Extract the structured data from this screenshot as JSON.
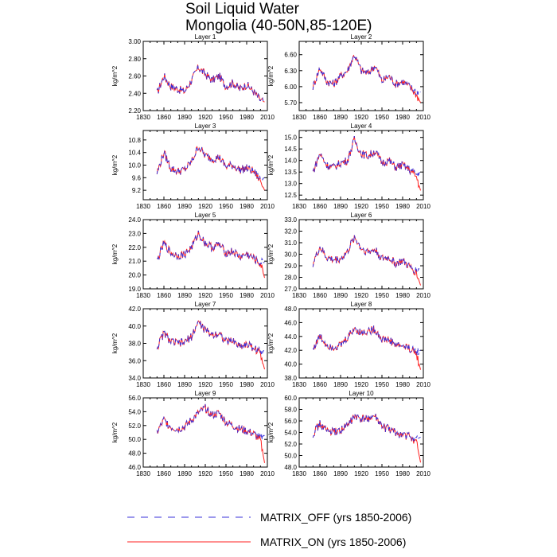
{
  "figure": {
    "title_line1": "Soil Liquid Water",
    "title_line2": "Mongolia (40-50N,85-120E)"
  },
  "legend": [
    {
      "label": "MATRIX_OFF (yrs 1850-2006)",
      "color": "#3a30d8",
      "style": "dashed"
    },
    {
      "label": "MATRIX_ON (yrs 1850-2006)",
      "color": "#ff2020",
      "style": "solid"
    }
  ],
  "chart_data": [
    {
      "type": "line",
      "title": "Layer 1",
      "xlabel": "",
      "ylabel": "kg/m^2",
      "xlim": [
        1830,
        2010
      ],
      "ylim": [
        2.2,
        3.0
      ],
      "xticks": [
        "1830",
        "1860",
        "1890",
        "1920",
        "1950",
        "1980",
        "2010"
      ],
      "yticks": [
        "2.20",
        "2.40",
        "2.60",
        "2.80",
        "3.00"
      ],
      "x": [
        1850,
        1860,
        1870,
        1880,
        1890,
        1900,
        1910,
        1920,
        1930,
        1940,
        1950,
        1960,
        1970,
        1980,
        1990,
        2000,
        2006
      ],
      "series": [
        {
          "name": "MATRIX_OFF",
          "values": [
            2.4,
            2.6,
            2.48,
            2.45,
            2.42,
            2.55,
            2.7,
            2.62,
            2.55,
            2.6,
            2.48,
            2.52,
            2.45,
            2.5,
            2.42,
            2.32,
            2.3
          ]
        },
        {
          "name": "MATRIX_ON",
          "values": [
            2.4,
            2.6,
            2.48,
            2.45,
            2.42,
            2.55,
            2.7,
            2.62,
            2.55,
            2.6,
            2.48,
            2.52,
            2.45,
            2.5,
            2.42,
            2.32,
            2.3
          ]
        }
      ]
    },
    {
      "type": "line",
      "title": "Layer 2",
      "xlabel": "",
      "ylabel": "kg/m^2",
      "xlim": [
        1830,
        2010
      ],
      "ylim": [
        5.55,
        6.85
      ],
      "xticks": [
        "1830",
        "1860",
        "1890",
        "1920",
        "1950",
        "1980",
        "2010"
      ],
      "yticks": [
        "5.70",
        "6.00",
        "6.30",
        "6.60"
      ],
      "x": [
        1850,
        1860,
        1870,
        1880,
        1890,
        1900,
        1910,
        1920,
        1930,
        1940,
        1950,
        1960,
        1970,
        1980,
        1990,
        2000,
        2006
      ],
      "series": [
        {
          "name": "MATRIX_OFF",
          "values": [
            6.0,
            6.35,
            6.1,
            6.05,
            6.2,
            6.3,
            6.6,
            6.3,
            6.25,
            6.4,
            6.1,
            6.2,
            6.05,
            6.1,
            6.0,
            5.9,
            5.9
          ]
        },
        {
          "name": "MATRIX_ON",
          "values": [
            6.0,
            6.35,
            6.1,
            6.05,
            6.2,
            6.3,
            6.6,
            6.3,
            6.25,
            6.4,
            6.1,
            6.2,
            6.05,
            6.1,
            6.0,
            5.85,
            5.7
          ]
        }
      ]
    },
    {
      "type": "line",
      "title": "Layer 3",
      "xlabel": "",
      "ylabel": "kg/m^2",
      "xlim": [
        1830,
        2010
      ],
      "ylim": [
        8.9,
        11.1
      ],
      "xticks": [
        "1830",
        "1860",
        "1890",
        "1920",
        "1950",
        "1980",
        "2010"
      ],
      "yticks": [
        "9.2",
        "9.6",
        "10.0",
        "10.4",
        "10.8"
      ],
      "x": [
        1850,
        1860,
        1870,
        1880,
        1890,
        1900,
        1910,
        1920,
        1930,
        1940,
        1950,
        1960,
        1970,
        1980,
        1990,
        2000,
        2006
      ],
      "series": [
        {
          "name": "MATRIX_OFF",
          "values": [
            9.75,
            10.4,
            9.9,
            9.8,
            9.85,
            10.1,
            10.6,
            10.3,
            10.2,
            10.25,
            9.95,
            10.0,
            9.85,
            9.9,
            9.8,
            9.55,
            9.6
          ]
        },
        {
          "name": "MATRIX_ON",
          "values": [
            9.75,
            10.4,
            9.9,
            9.8,
            9.85,
            10.1,
            10.6,
            10.3,
            10.2,
            10.25,
            9.95,
            10.0,
            9.85,
            9.9,
            9.8,
            9.5,
            9.2
          ]
        }
      ]
    },
    {
      "type": "line",
      "title": "Layer 4",
      "xlabel": "",
      "ylabel": "kg/m^2",
      "xlim": [
        1830,
        2010
      ],
      "ylim": [
        12.3,
        15.3
      ],
      "xticks": [
        "1830",
        "1860",
        "1890",
        "1920",
        "1950",
        "1980",
        "2010"
      ],
      "yticks": [
        "12.5",
        "13.0",
        "13.5",
        "14.0",
        "14.5",
        "15.0"
      ],
      "x": [
        1850,
        1860,
        1870,
        1880,
        1890,
        1900,
        1910,
        1920,
        1930,
        1940,
        1950,
        1960,
        1970,
        1980,
        1990,
        2000,
        2006
      ],
      "series": [
        {
          "name": "MATRIX_OFF",
          "values": [
            13.5,
            14.3,
            13.8,
            13.7,
            13.9,
            14.0,
            14.9,
            14.3,
            14.2,
            14.4,
            13.9,
            14.0,
            13.7,
            13.8,
            13.6,
            13.4,
            13.5
          ]
        },
        {
          "name": "MATRIX_ON",
          "values": [
            13.5,
            14.3,
            13.8,
            13.7,
            13.9,
            14.0,
            14.9,
            14.3,
            14.2,
            14.4,
            13.9,
            14.0,
            13.7,
            13.8,
            13.6,
            13.3,
            12.7
          ]
        }
      ]
    },
    {
      "type": "line",
      "title": "Layer 5",
      "xlabel": "",
      "ylabel": "kg/m^2",
      "xlim": [
        1830,
        2010
      ],
      "ylim": [
        19.0,
        24.0
      ],
      "xticks": [
        "1830",
        "1860",
        "1890",
        "1920",
        "1950",
        "1980",
        "2010"
      ],
      "yticks": [
        "19.0",
        "20.0",
        "21.0",
        "22.0",
        "23.0",
        "24.0"
      ],
      "x": [
        1850,
        1860,
        1870,
        1880,
        1890,
        1900,
        1910,
        1920,
        1930,
        1940,
        1950,
        1960,
        1970,
        1980,
        1990,
        2000,
        2006
      ],
      "series": [
        {
          "name": "MATRIX_OFF",
          "values": [
            21.0,
            22.3,
            21.6,
            21.4,
            21.5,
            22.0,
            23.0,
            22.3,
            22.0,
            22.2,
            21.6,
            21.7,
            21.3,
            21.5,
            21.2,
            20.9,
            20.9
          ]
        },
        {
          "name": "MATRIX_ON",
          "values": [
            21.0,
            22.3,
            21.6,
            21.4,
            21.5,
            22.0,
            23.0,
            22.3,
            22.0,
            22.2,
            21.6,
            21.7,
            21.3,
            21.5,
            21.2,
            20.8,
            19.8
          ]
        }
      ]
    },
    {
      "type": "line",
      "title": "Layer 6",
      "xlabel": "",
      "ylabel": "kg/m^2",
      "xlim": [
        1830,
        2010
      ],
      "ylim": [
        27.0,
        33.0
      ],
      "xticks": [
        "1830",
        "1860",
        "1890",
        "1920",
        "1950",
        "1980",
        "2010"
      ],
      "yticks": [
        "27.0",
        "28.0",
        "29.0",
        "30.0",
        "31.0",
        "32.0",
        "33.0"
      ],
      "x": [
        1850,
        1860,
        1870,
        1880,
        1890,
        1900,
        1910,
        1920,
        1930,
        1940,
        1950,
        1960,
        1970,
        1980,
        1990,
        2000,
        2006
      ],
      "series": [
        {
          "name": "MATRIX_OFF",
          "values": [
            29.2,
            30.6,
            29.7,
            29.5,
            29.6,
            30.2,
            31.5,
            30.5,
            30.2,
            30.4,
            29.6,
            29.7,
            29.2,
            29.4,
            28.9,
            28.6,
            28.8
          ]
        },
        {
          "name": "MATRIX_ON",
          "values": [
            29.2,
            30.6,
            29.7,
            29.5,
            29.6,
            30.2,
            31.5,
            30.5,
            30.2,
            30.4,
            29.6,
            29.7,
            29.2,
            29.4,
            28.9,
            28.4,
            27.3
          ]
        }
      ]
    },
    {
      "type": "line",
      "title": "Layer 7",
      "xlabel": "",
      "ylabel": "kg/m^2",
      "xlim": [
        1830,
        2010
      ],
      "ylim": [
        34.0,
        42.0
      ],
      "xticks": [
        "1830",
        "1860",
        "1890",
        "1920",
        "1950",
        "1980",
        "2010"
      ],
      "yticks": [
        "34.0",
        "36.0",
        "38.0",
        "40.0",
        "42.0"
      ],
      "x": [
        1850,
        1860,
        1870,
        1880,
        1890,
        1900,
        1910,
        1920,
        1930,
        1940,
        1950,
        1960,
        1970,
        1980,
        1990,
        2000,
        2006
      ],
      "series": [
        {
          "name": "MATRIX_OFF",
          "values": [
            37.5,
            39.2,
            38.2,
            38.0,
            38.1,
            38.8,
            40.5,
            39.5,
            39.0,
            39.2,
            38.2,
            38.3,
            37.7,
            37.9,
            37.5,
            37.0,
            37.2
          ]
        },
        {
          "name": "MATRIX_ON",
          "values": [
            37.5,
            39.2,
            38.2,
            38.0,
            38.1,
            38.8,
            40.5,
            39.5,
            39.0,
            39.2,
            38.2,
            38.3,
            37.7,
            37.9,
            37.5,
            36.8,
            35.0
          ]
        }
      ]
    },
    {
      "type": "line",
      "title": "Layer 8",
      "xlabel": "",
      "ylabel": "kg/m^2",
      "xlim": [
        1830,
        2010
      ],
      "ylim": [
        38.0,
        48.0
      ],
      "xticks": [
        "1830",
        "1860",
        "1890",
        "1920",
        "1950",
        "1980",
        "2010"
      ],
      "yticks": [
        "38.0",
        "40.0",
        "42.0",
        "44.0",
        "46.0",
        "48.0"
      ],
      "x": [
        1850,
        1860,
        1870,
        1880,
        1890,
        1900,
        1910,
        1920,
        1930,
        1940,
        1950,
        1960,
        1970,
        1980,
        1990,
        2000,
        2006
      ],
      "series": [
        {
          "name": "MATRIX_OFF",
          "values": [
            42.2,
            44.0,
            42.8,
            42.5,
            42.7,
            43.8,
            45.2,
            44.5,
            44.8,
            45.0,
            43.6,
            43.5,
            42.8,
            42.6,
            42.3,
            41.8,
            42.0
          ]
        },
        {
          "name": "MATRIX_ON",
          "values": [
            42.2,
            44.0,
            42.8,
            42.5,
            42.7,
            43.8,
            45.2,
            44.5,
            44.8,
            45.0,
            43.6,
            43.5,
            42.8,
            42.6,
            42.3,
            41.5,
            39.2
          ]
        }
      ]
    },
    {
      "type": "line",
      "title": "Layer 9",
      "xlabel": "",
      "ylabel": "kg/m^2",
      "xlim": [
        1830,
        2010
      ],
      "ylim": [
        46.0,
        56.0
      ],
      "xticks": [
        "1830",
        "1860",
        "1890",
        "1920",
        "1950",
        "1980",
        "2010"
      ],
      "yticks": [
        "46.0",
        "48.0",
        "50.0",
        "52.0",
        "54.0",
        "56.0"
      ],
      "x": [
        1850,
        1860,
        1870,
        1880,
        1890,
        1900,
        1910,
        1920,
        1930,
        1940,
        1950,
        1960,
        1970,
        1980,
        1990,
        2000,
        2006
      ],
      "series": [
        {
          "name": "MATRIX_OFF",
          "values": [
            51.0,
            52.8,
            51.8,
            51.5,
            51.8,
            52.8,
            53.8,
            54.5,
            53.5,
            53.8,
            52.5,
            52.0,
            51.5,
            51.2,
            50.8,
            50.2,
            50.6
          ]
        },
        {
          "name": "MATRIX_ON",
          "values": [
            51.0,
            52.8,
            51.8,
            51.5,
            51.8,
            52.8,
            53.8,
            54.5,
            53.5,
            53.8,
            52.5,
            52.0,
            51.5,
            51.2,
            50.8,
            49.8,
            46.6
          ]
        }
      ]
    },
    {
      "type": "line",
      "title": "Layer 10",
      "xlabel": "",
      "ylabel": "kg/m^2",
      "xlim": [
        1830,
        2010
      ],
      "ylim": [
        48.0,
        60.0
      ],
      "xticks": [
        "1830",
        "1860",
        "1890",
        "1920",
        "1950",
        "1980",
        "2010"
      ],
      "yticks": [
        "48.0",
        "50.0",
        "52.0",
        "54.0",
        "56.0",
        "58.0",
        "60.0"
      ],
      "x": [
        1850,
        1860,
        1870,
        1880,
        1890,
        1900,
        1910,
        1920,
        1930,
        1940,
        1950,
        1960,
        1970,
        1980,
        1990,
        2000,
        2006
      ],
      "series": [
        {
          "name": "MATRIX_OFF",
          "values": [
            53.8,
            55.5,
            54.3,
            54.0,
            54.4,
            55.2,
            56.8,
            56.2,
            56.5,
            56.7,
            55.0,
            54.6,
            53.9,
            53.6,
            53.3,
            52.8,
            53.2
          ]
        },
        {
          "name": "MATRIX_ON",
          "values": [
            53.8,
            55.5,
            54.3,
            54.0,
            54.4,
            55.2,
            56.8,
            56.2,
            56.5,
            56.7,
            55.0,
            54.6,
            53.9,
            53.6,
            53.3,
            52.4,
            48.8
          ]
        }
      ]
    }
  ]
}
